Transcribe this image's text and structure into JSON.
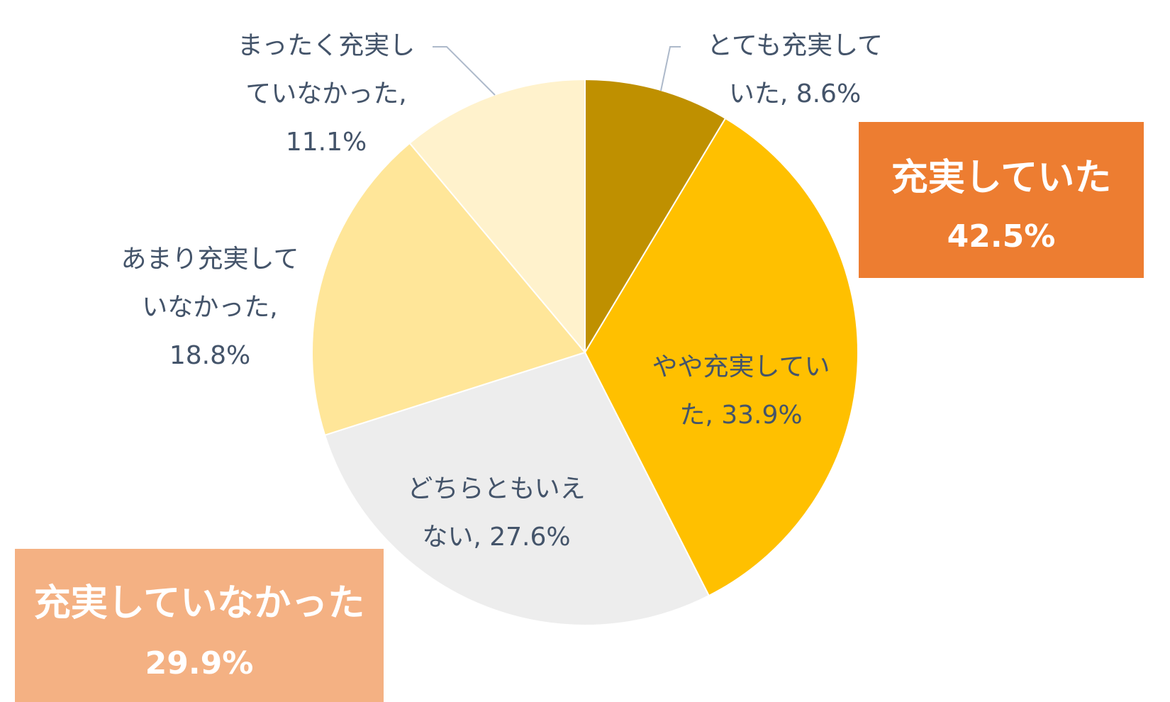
{
  "chart_data": {
    "type": "pie",
    "start_angle": 0,
    "direction": "clockwise",
    "slices": [
      {
        "label_lines": [
          "とても充実して",
          "いた, 8.6%"
        ],
        "name": "とても充実していた",
        "value": 8.6,
        "color": "#bf9000"
      },
      {
        "label_lines": [
          "やや充実してい",
          "た, 33.9%"
        ],
        "name": "やや充実していた",
        "value": 33.9,
        "color": "#ffc000"
      },
      {
        "label_lines": [
          "どちらともいえ",
          "ない, 27.6%"
        ],
        "name": "どちらともいえない",
        "value": 27.6,
        "color": "#ededed"
      },
      {
        "label_lines": [
          "あまり充実して",
          "いなかった,",
          "18.8%"
        ],
        "name": "あまり充実していなかった",
        "value": 18.8,
        "color": "#ffe699"
      },
      {
        "label_lines": [
          "まったく充実し",
          "ていなかった,",
          "11.1%"
        ],
        "name": "まったく充実していなかった",
        "value": 11.1,
        "color": "#fff2cc"
      }
    ],
    "leader_line_color": "#adb9ca",
    "summary_boxes": [
      {
        "title": "充実していた",
        "value": "42.5%",
        "color": "#ed7d31"
      },
      {
        "title": "充実していなかった",
        "value": "29.9%",
        "color": "#f4b183"
      }
    ]
  }
}
